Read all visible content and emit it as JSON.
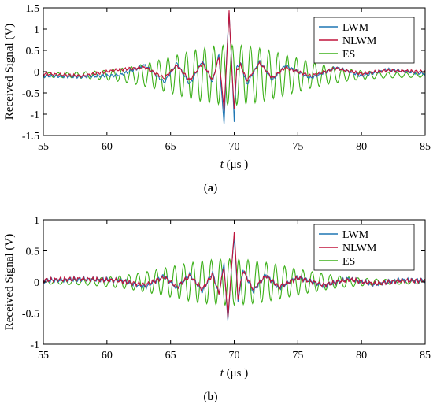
{
  "chart_data": [
    {
      "type": "line",
      "panel_label": "(a)",
      "panel_letter": "a",
      "xlabel": "t (μs )",
      "xlabel_var": "t",
      "xlabel_unit": " (μs )",
      "ylabel": "Received Signal  (V)",
      "xlim": [
        55,
        85
      ],
      "ylim": [
        -1.5,
        1.5
      ],
      "xticks": [
        55,
        60,
        65,
        70,
        75,
        80,
        85
      ],
      "xtick_labels": [
        "55",
        "60",
        "65",
        "70",
        "75",
        "80",
        "85"
      ],
      "yticks": [
        1.5,
        1,
        0.5,
        0,
        -0.5,
        -1,
        -1.5
      ],
      "ytick_labels": [
        "1.5",
        "1",
        "0.5",
        "0",
        "-0.5",
        "-1",
        "-1.5"
      ],
      "legend_position": "top-right",
      "series": [
        {
          "name": "LWM",
          "color": "#1f77b4",
          "x": [
            55,
            58,
            61,
            63,
            64.5,
            65.5,
            66.5,
            67.5,
            68.3,
            68.8,
            69.2,
            69.4,
            69.6,
            69.8,
            70.0,
            70.2,
            70.5,
            71,
            72,
            73,
            74,
            76,
            78,
            80,
            82,
            85
          ],
          "y": [
            -0.1,
            -0.12,
            -0.08,
            0.15,
            -0.25,
            0.2,
            -0.3,
            0.25,
            -0.25,
            0.4,
            -1.25,
            0.3,
            1.4,
            0.2,
            -1.15,
            0.1,
            0.2,
            -0.3,
            0.25,
            -0.2,
            0.15,
            -0.15,
            0.1,
            -0.1,
            0.05,
            -0.05
          ]
        },
        {
          "name": "NLWM",
          "color": "#c0143c",
          "x": [
            55,
            58,
            61,
            63,
            64.5,
            65.5,
            66.5,
            67.5,
            68.3,
            68.8,
            69.2,
            69.4,
            69.6,
            69.8,
            70.0,
            70.2,
            70.5,
            71,
            72,
            73,
            74,
            76,
            78,
            80,
            82,
            85
          ],
          "y": [
            -0.05,
            -0.1,
            0.05,
            0.1,
            -0.15,
            0.15,
            -0.2,
            0.2,
            -0.2,
            0.35,
            -0.9,
            0.2,
            1.45,
            0.1,
            -0.85,
            0.05,
            0.15,
            -0.2,
            0.2,
            -0.15,
            0.1,
            -0.1,
            0.08,
            -0.05,
            0.03,
            0
          ]
        },
        {
          "name": "ES",
          "color": "#3cb019",
          "envelope": {
            "center": 69.8,
            "sigma": 4.6,
            "amplitude": 0.65,
            "period": 0.72,
            "floor": 0.05,
            "offset": -0.08
          }
        }
      ]
    },
    {
      "type": "line",
      "panel_label": "(b)",
      "panel_letter": "b",
      "xlabel": "t (μs )",
      "xlabel_var": "t",
      "xlabel_unit": " (μs )",
      "ylabel": "Received Signal  (V)",
      "xlim": [
        55,
        85
      ],
      "ylim": [
        -1,
        1
      ],
      "xticks": [
        55,
        60,
        65,
        70,
        75,
        80,
        85
      ],
      "xtick_labels": [
        "55",
        "60",
        "65",
        "70",
        "75",
        "80",
        "85"
      ],
      "yticks": [
        1,
        0.5,
        0,
        -0.5,
        -1
      ],
      "ytick_labels": [
        "1",
        "0.5",
        "0",
        "-0.5",
        "-1"
      ],
      "legend_position": "top-right",
      "series": [
        {
          "name": "LWM",
          "color": "#1f77b4",
          "x": [
            55,
            58,
            61,
            63,
            64.5,
            65.5,
            66.5,
            67.5,
            68.3,
            68.8,
            69.2,
            69.5,
            69.75,
            70.0,
            70.3,
            70.7,
            71.5,
            72.5,
            73.5,
            75,
            77,
            79,
            81,
            83,
            85
          ],
          "y": [
            0.02,
            0.04,
            0.03,
            -0.08,
            0.1,
            -0.1,
            0.12,
            -0.15,
            0.15,
            -0.2,
            0.3,
            -0.65,
            0.1,
            0.75,
            -0.3,
            0.2,
            -0.15,
            0.12,
            -0.1,
            0.08,
            -0.06,
            0.05,
            -0.04,
            0.03,
            0.02
          ]
        },
        {
          "name": "NLWM",
          "color": "#c0143c",
          "x": [
            55,
            58,
            61,
            63,
            64.5,
            65.5,
            66.5,
            67.5,
            68.3,
            68.8,
            69.2,
            69.5,
            69.75,
            70.0,
            70.3,
            70.7,
            71.5,
            72.5,
            73.5,
            75,
            77,
            79,
            81,
            83,
            85
          ],
          "y": [
            0.03,
            0.05,
            0.02,
            -0.05,
            0.08,
            -0.08,
            0.1,
            -0.12,
            0.12,
            -0.18,
            0.25,
            -0.58,
            0.1,
            0.83,
            -0.25,
            0.18,
            -0.12,
            0.1,
            -0.08,
            0.07,
            -0.05,
            0.04,
            -0.03,
            0.02,
            0.02
          ]
        },
        {
          "name": "ES",
          "color": "#3cb019",
          "envelope": {
            "center": 69.6,
            "sigma": 4.8,
            "amplitude": 0.34,
            "period": 0.72,
            "floor": 0.03,
            "offset": 0.0
          }
        }
      ]
    }
  ]
}
